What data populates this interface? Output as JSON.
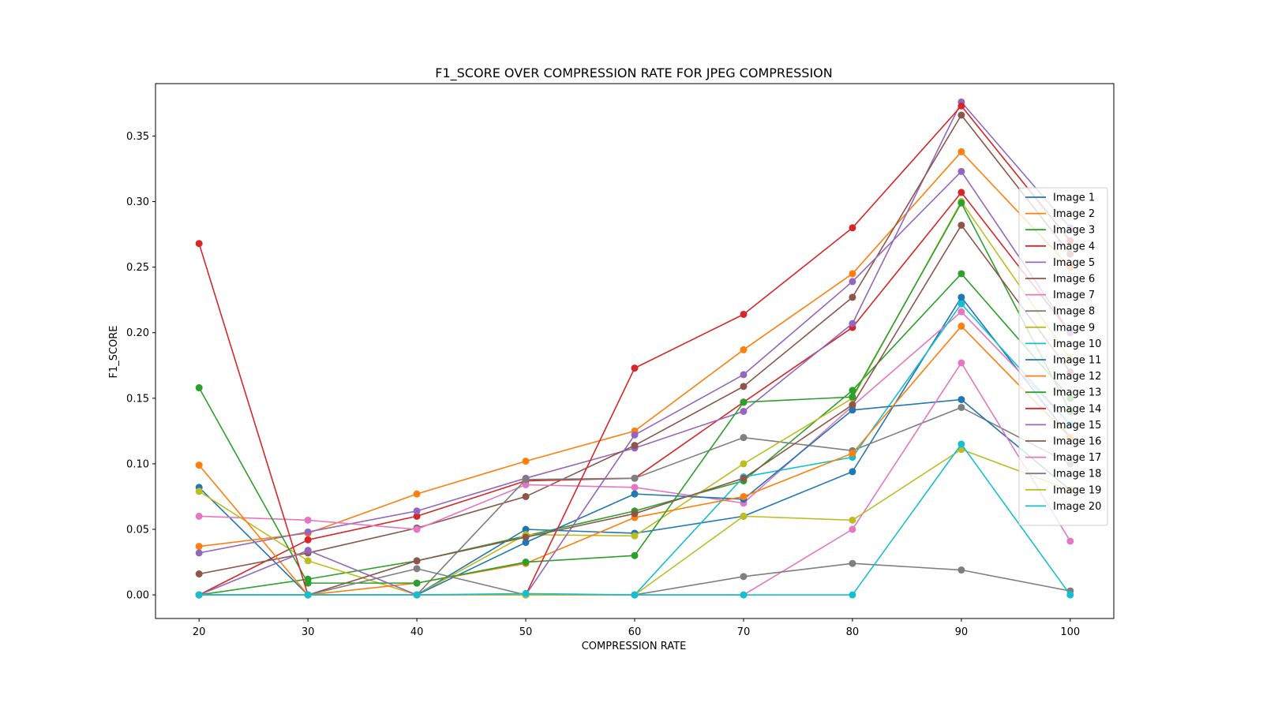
{
  "chart_data": {
    "type": "line",
    "title": "F1_SCORE OVER COMPRESSION RATE FOR JPEG COMPRESSION",
    "xlabel": "COMPRESSION RATE",
    "ylabel": "F1_SCORE",
    "x": [
      20,
      30,
      40,
      50,
      60,
      70,
      80,
      90,
      100
    ],
    "xlim": [
      16,
      104
    ],
    "ylim": [
      -0.018,
      0.39
    ],
    "xticks": [
      20,
      30,
      40,
      50,
      60,
      70,
      80,
      90,
      100
    ],
    "yticks": [
      0.0,
      0.05,
      0.1,
      0.15,
      0.2,
      0.25,
      0.3,
      0.35
    ],
    "ytick_labels": [
      "0.00",
      "0.05",
      "0.10",
      "0.15",
      "0.20",
      "0.25",
      "0.30",
      "0.35"
    ],
    "grid": false,
    "legend_position": "center-right",
    "series": [
      {
        "name": "Image 1",
        "color": "#1f77b4",
        "values": [
          0.082,
          0.0,
          0.0,
          0.05,
          0.047,
          0.06,
          0.094,
          0.227,
          0.12
        ]
      },
      {
        "name": "Image 2",
        "color": "#ff7f0e",
        "values": [
          0.037,
          0.047,
          0.077,
          0.102,
          0.125,
          0.187,
          0.245,
          0.338,
          0.25
        ]
      },
      {
        "name": "Image 3",
        "color": "#2ca02c",
        "values": [
          0.0,
          0.012,
          0.026,
          0.045,
          0.064,
          0.087,
          0.156,
          0.245,
          0.15
        ]
      },
      {
        "name": "Image 4",
        "color": "#d62728",
        "values": [
          0.0,
          0.042,
          0.06,
          0.087,
          0.089,
          0.147,
          0.204,
          0.307,
          0.2
        ]
      },
      {
        "name": "Image 5",
        "color": "#9467bd",
        "values": [
          0.032,
          0.048,
          0.064,
          0.089,
          0.112,
          0.14,
          0.207,
          0.376,
          0.28
        ]
      },
      {
        "name": "Image 6",
        "color": "#8c564b",
        "values": [
          0.016,
          0.032,
          0.051,
          0.075,
          0.114,
          0.159,
          0.227,
          0.366,
          0.26
        ]
      },
      {
        "name": "Image 7",
        "color": "#e377c2",
        "values": [
          0.06,
          0.057,
          0.05,
          0.084,
          0.082,
          0.07,
          0.144,
          0.216,
          0.13
        ]
      },
      {
        "name": "Image 8",
        "color": "#7f7f7f",
        "values": [
          0.0,
          0.0,
          0.0,
          0.088,
          0.089,
          0.12,
          0.11,
          0.143,
          0.1
        ]
      },
      {
        "name": "Image 9",
        "color": "#bcbd22",
        "values": [
          0.079,
          0.026,
          0.0,
          0.046,
          0.045,
          0.1,
          0.15,
          0.3,
          0.18
        ]
      },
      {
        "name": "Image 10",
        "color": "#17becf",
        "values": [
          0.0,
          0.0,
          0.0,
          0.0,
          0.0,
          0.09,
          0.105,
          0.222,
          0.13
        ]
      },
      {
        "name": "Image 11",
        "color": "#1f77b4",
        "values": [
          0.0,
          0.0,
          0.0,
          0.04,
          0.077,
          0.073,
          0.141,
          0.149,
          0.08
        ]
      },
      {
        "name": "Image 12",
        "color": "#ff7f0e",
        "values": [
          0.099,
          0.0,
          0.009,
          0.024,
          0.059,
          0.075,
          0.108,
          0.205,
          0.12
        ]
      },
      {
        "name": "Image 13",
        "color": "#2ca02c",
        "values": [
          0.158,
          0.009,
          0.009,
          0.025,
          0.03,
          0.147,
          0.151,
          0.299,
          0.14
        ]
      },
      {
        "name": "Image 14",
        "color": "#d62728",
        "values": [
          0.268,
          0.0,
          0.0,
          0.0,
          0.173,
          0.214,
          0.28,
          0.373,
          0.27
        ]
      },
      {
        "name": "Image 15",
        "color": "#9467bd",
        "values": [
          0.0,
          0.034,
          0.0,
          0.0,
          0.122,
          0.168,
          0.239,
          0.323,
          0.2
        ]
      },
      {
        "name": "Image 16",
        "color": "#8c564b",
        "values": [
          0.0,
          0.0,
          0.026,
          0.044,
          0.062,
          0.089,
          0.145,
          0.282,
          0.17
        ]
      },
      {
        "name": "Image 17",
        "color": "#e377c2",
        "values": [
          0.0,
          0.0,
          0.0,
          0.0,
          0.0,
          0.0,
          0.05,
          0.177,
          0.041
        ]
      },
      {
        "name": "Image 18",
        "color": "#7f7f7f",
        "values": [
          0.0,
          0.0,
          0.02,
          0.0,
          0.0,
          0.014,
          0.024,
          0.019,
          0.003
        ]
      },
      {
        "name": "Image 19",
        "color": "#bcbd22",
        "values": [
          0.0,
          0.0,
          0.0,
          0.0,
          0.0,
          0.06,
          0.057,
          0.111,
          0.08
        ]
      },
      {
        "name": "Image 20",
        "color": "#17becf",
        "values": [
          0.0,
          0.0,
          0.0,
          0.001,
          0.0,
          0.0,
          0.0,
          0.115,
          0.0
        ]
      }
    ]
  }
}
